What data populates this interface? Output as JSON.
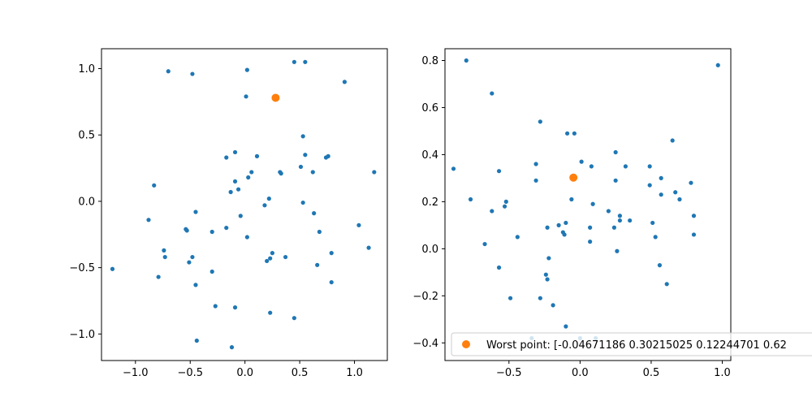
{
  "chart_data": [
    {
      "type": "scatter",
      "xlim": [
        -1.31,
        1.3
      ],
      "ylim": [
        -1.2,
        1.15
      ],
      "xticks": [
        -1.0,
        -0.5,
        0.0,
        0.5,
        1.0
      ],
      "xtick_labels": [
        "−1.0",
        "−0.5",
        "0.0",
        "0.5",
        "1.0"
      ],
      "yticks": [
        -1.0,
        -0.5,
        0.0,
        0.5,
        1.0
      ],
      "ytick_labels": [
        "−1.0",
        "−0.5",
        "0.0",
        "0.5",
        "1.0"
      ],
      "grid": false,
      "series": [
        {
          "color": "#1f77b4",
          "marker_size": "small",
          "points": [
            [
              -1.21,
              -0.51
            ],
            [
              -0.7,
              0.98
            ],
            [
              -0.48,
              0.96
            ],
            [
              0.02,
              0.99
            ],
            [
              0.45,
              1.05
            ],
            [
              0.55,
              1.05
            ],
            [
              0.91,
              0.9
            ],
            [
              0.01,
              0.79
            ],
            [
              -0.83,
              0.12
            ],
            [
              -0.88,
              -0.14
            ],
            [
              -0.74,
              -0.37
            ],
            [
              -0.73,
              -0.42
            ],
            [
              -0.79,
              -0.57
            ],
            [
              -0.53,
              -0.22
            ],
            [
              -0.54,
              -0.21
            ],
            [
              -0.51,
              -0.46
            ],
            [
              -0.48,
              -0.42
            ],
            [
              -0.45,
              -0.63
            ],
            [
              -0.44,
              -1.05
            ],
            [
              -0.45,
              -0.08
            ],
            [
              -0.3,
              -0.23
            ],
            [
              -0.3,
              -0.53
            ],
            [
              -0.27,
              -0.79
            ],
            [
              -0.17,
              0.33
            ],
            [
              -0.17,
              -0.2
            ],
            [
              -0.13,
              0.07
            ],
            [
              -0.12,
              -1.1
            ],
            [
              -0.09,
              0.37
            ],
            [
              -0.09,
              0.15
            ],
            [
              -0.06,
              0.09
            ],
            [
              -0.04,
              -0.11
            ],
            [
              -0.09,
              -0.8
            ],
            [
              0.02,
              -0.27
            ],
            [
              0.03,
              0.18
            ],
            [
              0.06,
              0.22
            ],
            [
              0.11,
              0.34
            ],
            [
              0.18,
              -0.03
            ],
            [
              0.22,
              0.02
            ],
            [
              0.2,
              -0.45
            ],
            [
              0.23,
              -0.43
            ],
            [
              0.25,
              -0.39
            ],
            [
              0.23,
              -0.84
            ],
            [
              0.32,
              0.22
            ],
            [
              0.33,
              0.21
            ],
            [
              0.37,
              -0.42
            ],
            [
              0.45,
              -0.88
            ],
            [
              0.51,
              0.26
            ],
            [
              0.53,
              0.49
            ],
            [
              0.55,
              0.35
            ],
            [
              0.53,
              -0.01
            ],
            [
              0.62,
              0.22
            ],
            [
              0.63,
              -0.09
            ],
            [
              0.66,
              -0.48
            ],
            [
              0.68,
              -0.23
            ],
            [
              0.74,
              0.33
            ],
            [
              0.76,
              0.34
            ],
            [
              0.79,
              -0.39
            ],
            [
              0.79,
              -0.61
            ],
            [
              1.04,
              -0.18
            ],
            [
              1.13,
              -0.35
            ],
            [
              1.18,
              0.22
            ]
          ]
        },
        {
          "color": "#ff7f0e",
          "marker_size": "large",
          "points": [
            [
              0.28,
              0.78
            ]
          ]
        }
      ]
    },
    {
      "type": "scatter",
      "xlim": [
        -0.95,
        1.06
      ],
      "ylim": [
        -0.475,
        0.85
      ],
      "xticks": [
        -0.5,
        0.0,
        0.5,
        1.0
      ],
      "xtick_labels": [
        "−0.5",
        "0.0",
        "0.5",
        "1.0"
      ],
      "yticks": [
        -0.4,
        -0.2,
        0.0,
        0.2,
        0.4,
        0.6,
        0.8
      ],
      "ytick_labels": [
        "−0.4",
        "−0.2",
        "0.0",
        "0.2",
        "0.4",
        "0.6",
        "0.8"
      ],
      "grid": false,
      "legend": {
        "placement": "lower-left",
        "entries": [
          {
            "label": "Worst point: [-0.04671186  0.30215025  0.12244701  0.62",
            "color": "#ff7f0e"
          }
        ]
      },
      "series": [
        {
          "color": "#1f77b4",
          "marker_size": "small",
          "points": [
            [
              -0.89,
              0.34
            ],
            [
              -0.8,
              0.8
            ],
            [
              -0.77,
              0.21
            ],
            [
              -0.67,
              0.02
            ],
            [
              -0.62,
              0.66
            ],
            [
              -0.62,
              0.16
            ],
            [
              -0.57,
              0.33
            ],
            [
              -0.57,
              -0.08
            ],
            [
              -0.53,
              0.18
            ],
            [
              -0.52,
              0.2
            ],
            [
              -0.49,
              -0.21
            ],
            [
              -0.44,
              0.05
            ],
            [
              -0.34,
              -0.38
            ],
            [
              -0.31,
              0.36
            ],
            [
              -0.31,
              0.29
            ],
            [
              -0.28,
              0.54
            ],
            [
              -0.28,
              -0.21
            ],
            [
              -0.24,
              -0.11
            ],
            [
              -0.23,
              -0.13
            ],
            [
              -0.23,
              0.09
            ],
            [
              -0.22,
              -0.04
            ],
            [
              -0.19,
              -0.24
            ],
            [
              -0.15,
              0.1
            ],
            [
              -0.12,
              0.07
            ],
            [
              -0.11,
              0.06
            ],
            [
              -0.1,
              -0.33
            ],
            [
              -0.1,
              0.11
            ],
            [
              -0.09,
              0.49
            ],
            [
              -0.04,
              0.49
            ],
            [
              -0.06,
              0.21
            ],
            [
              0.0,
              -0.38
            ],
            [
              0.01,
              0.37
            ],
            [
              0.07,
              0.03
            ],
            [
              0.07,
              0.09
            ],
            [
              0.08,
              0.35
            ],
            [
              0.09,
              0.19
            ],
            [
              0.11,
              -0.38
            ],
            [
              0.2,
              0.16
            ],
            [
              0.24,
              0.09
            ],
            [
              0.25,
              0.41
            ],
            [
              0.25,
              0.29
            ],
            [
              0.26,
              -0.01
            ],
            [
              0.28,
              0.12
            ],
            [
              0.28,
              0.14
            ],
            [
              0.32,
              0.35
            ],
            [
              0.35,
              0.12
            ],
            [
              0.49,
              0.27
            ],
            [
              0.49,
              0.35
            ],
            [
              0.51,
              0.11
            ],
            [
              0.53,
              0.05
            ],
            [
              0.56,
              -0.07
            ],
            [
              0.57,
              0.23
            ],
            [
              0.57,
              0.3
            ],
            [
              0.61,
              -0.15
            ],
            [
              0.65,
              0.46
            ],
            [
              0.67,
              0.24
            ],
            [
              0.7,
              0.21
            ],
            [
              0.78,
              0.28
            ],
            [
              0.8,
              0.14
            ],
            [
              0.8,
              0.06
            ],
            [
              0.97,
              0.78
            ]
          ]
        },
        {
          "color": "#ff7f0e",
          "marker_size": "large",
          "points": [
            [
              -0.04671186,
              0.30215025
            ]
          ]
        }
      ]
    }
  ]
}
